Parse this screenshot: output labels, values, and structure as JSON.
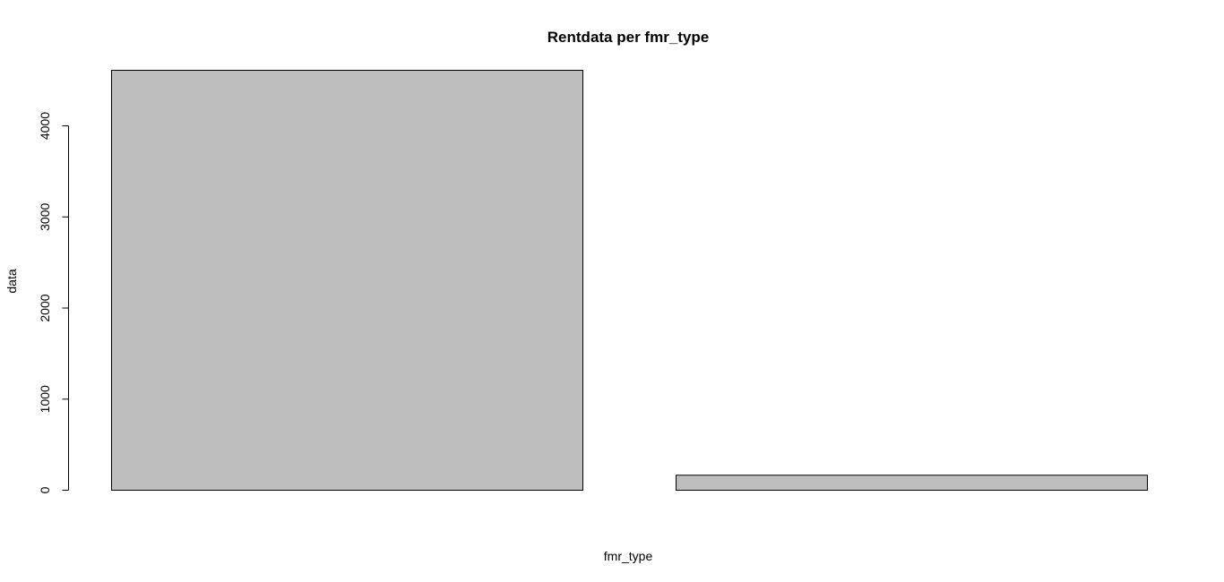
{
  "chart_data": {
    "type": "bar",
    "title": "Rentdata per fmr_type",
    "xlabel": "fmr_type",
    "ylabel": "data",
    "categories": [
      "",
      ""
    ],
    "values": [
      4610,
      165
    ],
    "ylim": [
      0,
      4610
    ],
    "yticks": [
      0,
      1000,
      2000,
      3000,
      4000
    ],
    "ytick_labels": [
      "0",
      "1000",
      "2000",
      "3000",
      "4000"
    ],
    "grid": false,
    "legend": "none",
    "bar_fill": "#bebebe",
    "bar_stroke": "#000000"
  }
}
